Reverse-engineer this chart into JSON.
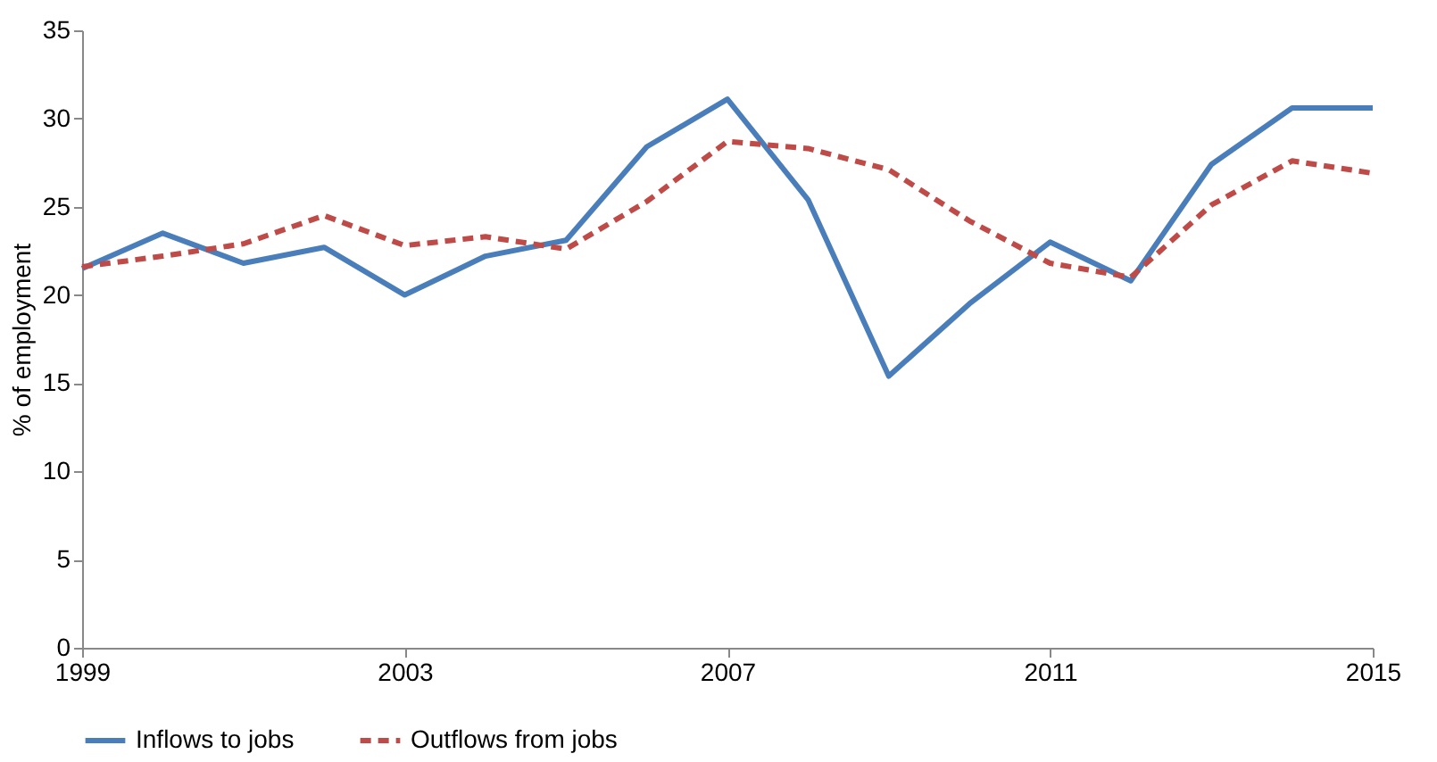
{
  "chart_data": {
    "type": "line",
    "ylabel": "% of employment",
    "x": [
      1999,
      2000,
      2001,
      2002,
      2003,
      2004,
      2005,
      2006,
      2007,
      2008,
      2009,
      2010,
      2011,
      2012,
      2013,
      2014,
      2015
    ],
    "series": [
      {
        "name": "Inflows to jobs",
        "color": "#4a7ebb",
        "line_style": "solid",
        "values": [
          21.5,
          23.5,
          21.8,
          22.7,
          20.0,
          22.2,
          23.1,
          28.4,
          31.1,
          25.4,
          15.4,
          19.5,
          23.0,
          20.8,
          27.4,
          30.6,
          30.6
        ]
      },
      {
        "name": "Outflows from jobs",
        "color": "#be4b48",
        "line_style": "dashed",
        "values": [
          21.6,
          22.2,
          22.9,
          24.5,
          22.8,
          23.3,
          22.6,
          25.3,
          28.7,
          28.3,
          27.1,
          24.2,
          21.8,
          21.0,
          25.1,
          27.6,
          26.9
        ]
      }
    ],
    "xlim": [
      1999,
      2015
    ],
    "xticks": [
      1999,
      2003,
      2007,
      2011,
      2015
    ],
    "ylim": [
      0,
      35
    ],
    "yticks": [
      0,
      5,
      10,
      15,
      20,
      25,
      30,
      35
    ],
    "grid": false,
    "legend": "bottom",
    "marker": "none"
  }
}
